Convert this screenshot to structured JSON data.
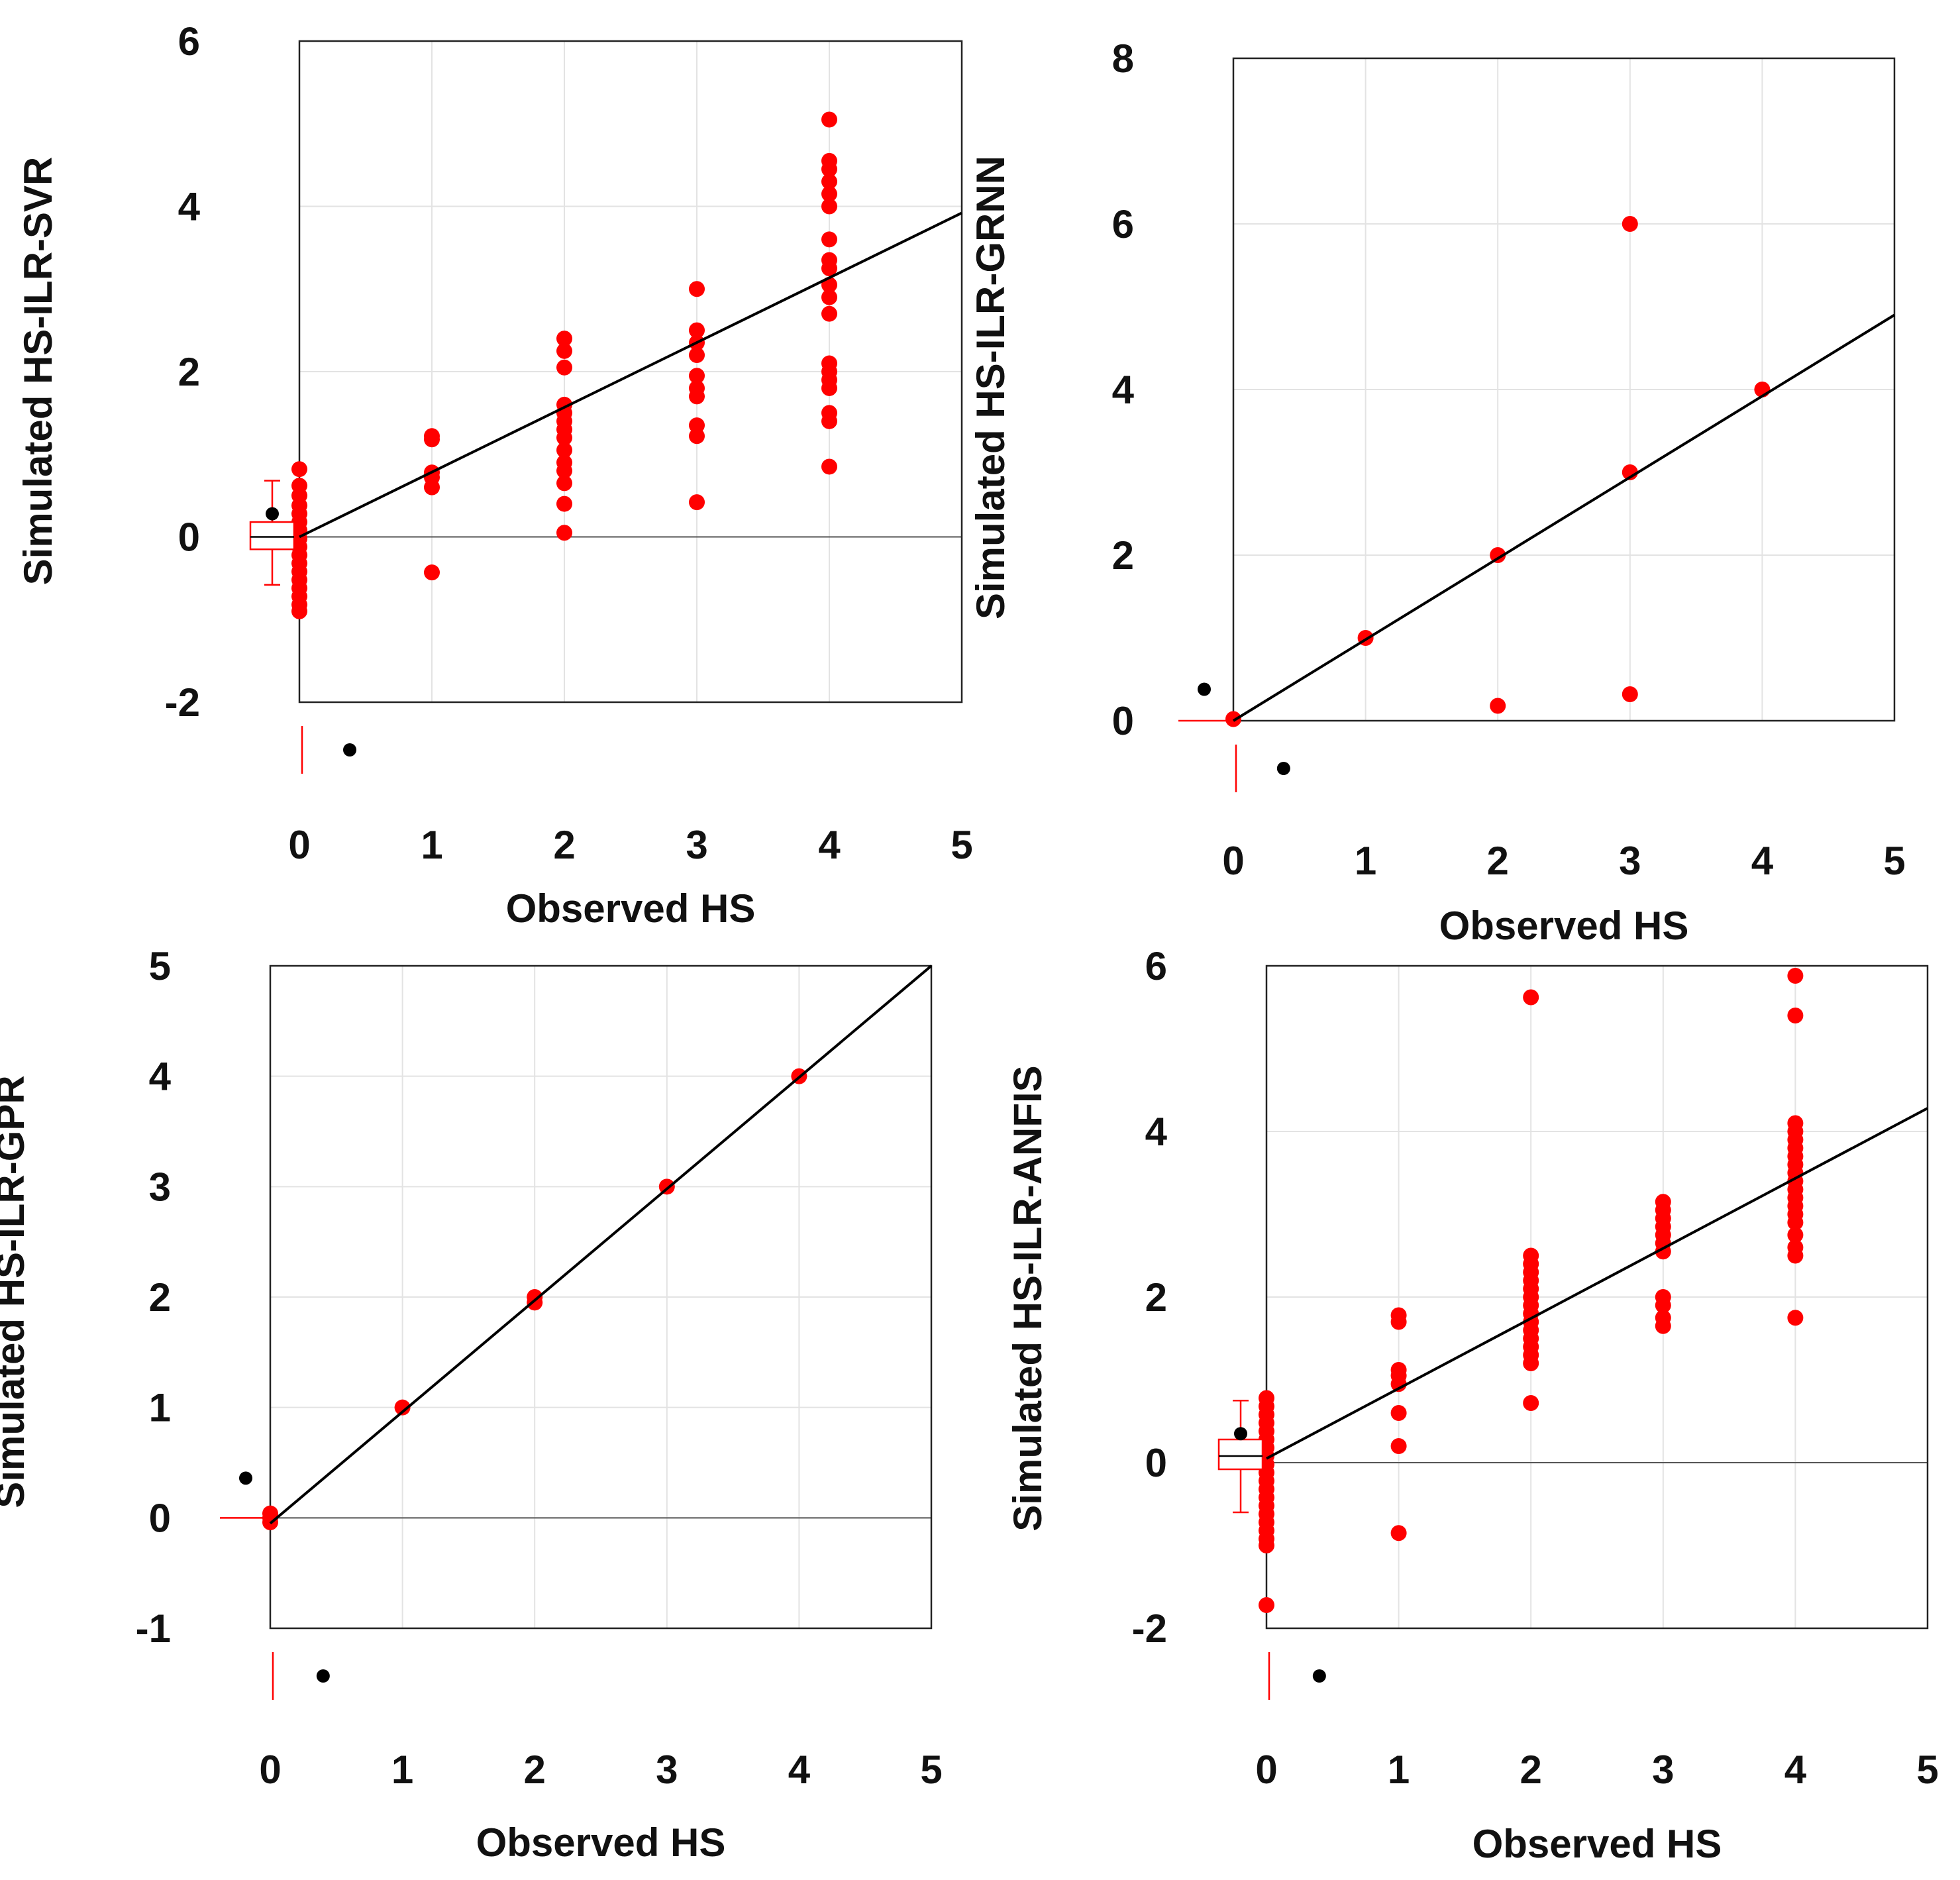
{
  "chart_data": [
    {
      "type": "scatter",
      "xlabel": "Observed HS",
      "ylabel": "Simulated HS-ILR-SVR",
      "xlim": [
        0,
        5
      ],
      "ylim": [
        -2,
        6
      ],
      "xticks": [
        "0",
        "1",
        "2",
        "3",
        "4",
        "5"
      ],
      "yticks": [
        "-2",
        "0",
        "2",
        "4",
        "6"
      ],
      "xtick_values": [
        0,
        1,
        2,
        3,
        4,
        5
      ],
      "ytick_values": [
        -2,
        0,
        2,
        4,
        6
      ],
      "fit_line": [
        [
          0,
          0
        ],
        [
          5,
          3.92
        ]
      ],
      "points": [
        [
          0,
          0.82
        ],
        [
          0,
          0.62
        ],
        [
          0,
          0.5
        ],
        [
          0,
          0.38
        ],
        [
          0,
          0.28
        ],
        [
          0,
          0.18
        ],
        [
          0,
          0.08
        ],
        [
          0,
          -0.02
        ],
        [
          0,
          -0.12
        ],
        [
          0,
          -0.22
        ],
        [
          0,
          -0.32
        ],
        [
          0,
          -0.42
        ],
        [
          0,
          -0.52
        ],
        [
          0,
          -0.62
        ],
        [
          0,
          -0.72
        ],
        [
          0,
          -0.82
        ],
        [
          0,
          -0.9
        ],
        [
          1,
          1.22
        ],
        [
          1,
          1.18
        ],
        [
          1,
          0.78
        ],
        [
          1,
          0.72
        ],
        [
          1,
          0.6
        ],
        [
          1,
          -0.43
        ],
        [
          2,
          2.4
        ],
        [
          2,
          2.25
        ],
        [
          2,
          2.05
        ],
        [
          2,
          1.6
        ],
        [
          2,
          1.5
        ],
        [
          2,
          1.4
        ],
        [
          2,
          1.3
        ],
        [
          2,
          1.2
        ],
        [
          2,
          1.05
        ],
        [
          2,
          0.9
        ],
        [
          2,
          0.8
        ],
        [
          2,
          0.65
        ],
        [
          2,
          0.4
        ],
        [
          2,
          0.05
        ],
        [
          3,
          3.0
        ],
        [
          3,
          2.5
        ],
        [
          3,
          2.35
        ],
        [
          3,
          2.2
        ],
        [
          3,
          1.95
        ],
        [
          3,
          1.8
        ],
        [
          3,
          1.7
        ],
        [
          3,
          1.35
        ],
        [
          3,
          1.22
        ],
        [
          3,
          0.42
        ],
        [
          4,
          5.05
        ],
        [
          4,
          4.55
        ],
        [
          4,
          4.45
        ],
        [
          4,
          4.3
        ],
        [
          4,
          4.15
        ],
        [
          4,
          4.0
        ],
        [
          4,
          3.6
        ],
        [
          4,
          3.35
        ],
        [
          4,
          3.25
        ],
        [
          4,
          3.05
        ],
        [
          4,
          2.9
        ],
        [
          4,
          2.7
        ],
        [
          4,
          2.1
        ],
        [
          4,
          2.0
        ],
        [
          4,
          1.9
        ],
        [
          4,
          1.8
        ],
        [
          4,
          1.5
        ],
        [
          4,
          1.4
        ],
        [
          4,
          0.85
        ]
      ],
      "boxplot_y": {
        "min": -0.58,
        "q1": -0.15,
        "median": 0.0,
        "q3": 0.18,
        "max": 0.68
      },
      "mean_marker_y": 0.28,
      "mean_marker_x": 0.38
    },
    {
      "type": "scatter",
      "xlabel": "Observed HS",
      "ylabel": "Simulated HS-ILR-GRNN",
      "xlim": [
        0,
        5
      ],
      "ylim": [
        0,
        8
      ],
      "xticks": [
        "0",
        "1",
        "2",
        "3",
        "4",
        "5"
      ],
      "yticks": [
        "0",
        "2",
        "4",
        "6",
        "8"
      ],
      "xtick_values": [
        0,
        1,
        2,
        3,
        4,
        5
      ],
      "ytick_values": [
        0,
        2,
        4,
        6,
        8
      ],
      "fit_line": [
        [
          0,
          0
        ],
        [
          5,
          4.9
        ]
      ],
      "points": [
        [
          0,
          0.02
        ],
        [
          1,
          1.0
        ],
        [
          2,
          2.0
        ],
        [
          2,
          0.18
        ],
        [
          3,
          6.0
        ],
        [
          3,
          3.0
        ],
        [
          3,
          0.32
        ],
        [
          4,
          4.0
        ]
      ],
      "boxplot_y": {
        "min": 0.0,
        "q1": 0.0,
        "median": 0.0,
        "q3": 0.0,
        "max": 0.0
      },
      "mean_marker_y": 0.38,
      "mean_marker_x": 0.38
    },
    {
      "type": "scatter",
      "xlabel": "Observed HS",
      "ylabel": "Simulated HS-ILR-GPR",
      "xlim": [
        0,
        5
      ],
      "ylim": [
        -1,
        5
      ],
      "xticks": [
        "0",
        "1",
        "2",
        "3",
        "4",
        "5"
      ],
      "yticks": [
        "-1",
        "0",
        "1",
        "2",
        "3",
        "4",
        "5"
      ],
      "xtick_values": [
        0,
        1,
        2,
        3,
        4,
        5
      ],
      "ytick_values": [
        -1,
        0,
        1,
        2,
        3,
        4,
        5
      ],
      "fit_line": [
        [
          0,
          -0.05
        ],
        [
          5,
          5.0
        ]
      ],
      "points": [
        [
          0,
          0.04
        ],
        [
          0,
          0.0
        ],
        [
          0,
          -0.04
        ],
        [
          1,
          1.0
        ],
        [
          2,
          2.0
        ],
        [
          2,
          1.95
        ],
        [
          3,
          3.0
        ],
        [
          4,
          4.0
        ]
      ],
      "boxplot_y": {
        "min": 0.0,
        "q1": 0.0,
        "median": 0.0,
        "q3": 0.0,
        "max": 0.0
      },
      "mean_marker_y": 0.36,
      "mean_marker_x": 0.4
    },
    {
      "type": "scatter",
      "xlabel": "Observed HS",
      "ylabel": "Simulated HS-ILR-ANFIS",
      "xlim": [
        0,
        5
      ],
      "ylim": [
        -2,
        6
      ],
      "xticks": [
        "0",
        "1",
        "2",
        "3",
        "4",
        "5"
      ],
      "yticks": [
        "-2",
        "0",
        "2",
        "4",
        "6"
      ],
      "xtick_values": [
        0,
        1,
        2,
        3,
        4,
        5
      ],
      "ytick_values": [
        -2,
        0,
        2,
        4,
        6
      ],
      "fit_line": [
        [
          0,
          0.05
        ],
        [
          5,
          4.28
        ]
      ],
      "points": [
        [
          0,
          0.78
        ],
        [
          0,
          0.68
        ],
        [
          0,
          0.58
        ],
        [
          0,
          0.48
        ],
        [
          0,
          0.38
        ],
        [
          0,
          0.28
        ],
        [
          0,
          0.18
        ],
        [
          0,
          0.08
        ],
        [
          0,
          -0.02
        ],
        [
          0,
          -0.12
        ],
        [
          0,
          -0.22
        ],
        [
          0,
          -0.32
        ],
        [
          0,
          -0.42
        ],
        [
          0,
          -0.52
        ],
        [
          0,
          -0.62
        ],
        [
          0,
          -0.72
        ],
        [
          0,
          -0.82
        ],
        [
          0,
          -0.92
        ],
        [
          0,
          -1.0
        ],
        [
          0,
          -1.72
        ],
        [
          1,
          1.78
        ],
        [
          1,
          1.7
        ],
        [
          1,
          1.12
        ],
        [
          1,
          1.05
        ],
        [
          1,
          0.95
        ],
        [
          1,
          0.6
        ],
        [
          1,
          0.2
        ],
        [
          1,
          -0.85
        ],
        [
          2,
          5.62
        ],
        [
          2,
          2.5
        ],
        [
          2,
          2.4
        ],
        [
          2,
          2.3
        ],
        [
          2,
          2.2
        ],
        [
          2,
          2.1
        ],
        [
          2,
          2.0
        ],
        [
          2,
          1.9
        ],
        [
          2,
          1.8
        ],
        [
          2,
          1.7
        ],
        [
          2,
          1.6
        ],
        [
          2,
          1.5
        ],
        [
          2,
          1.4
        ],
        [
          2,
          1.3
        ],
        [
          2,
          1.2
        ],
        [
          2,
          0.72
        ],
        [
          3,
          3.15
        ],
        [
          3,
          3.05
        ],
        [
          3,
          2.95
        ],
        [
          3,
          2.85
        ],
        [
          3,
          2.75
        ],
        [
          3,
          2.65
        ],
        [
          3,
          2.55
        ],
        [
          3,
          2.0
        ],
        [
          3,
          1.9
        ],
        [
          3,
          1.75
        ],
        [
          3,
          1.65
        ],
        [
          4,
          5.88
        ],
        [
          4,
          5.4
        ],
        [
          4,
          4.1
        ],
        [
          4,
          4.0
        ],
        [
          4,
          3.9
        ],
        [
          4,
          3.8
        ],
        [
          4,
          3.7
        ],
        [
          4,
          3.6
        ],
        [
          4,
          3.5
        ],
        [
          4,
          3.4
        ],
        [
          4,
          3.3
        ],
        [
          4,
          3.2
        ],
        [
          4,
          3.1
        ],
        [
          4,
          3.0
        ],
        [
          4,
          2.9
        ],
        [
          4,
          2.75
        ],
        [
          4,
          2.6
        ],
        [
          4,
          2.5
        ],
        [
          4,
          1.75
        ]
      ],
      "boxplot_y": {
        "min": -0.6,
        "q1": -0.08,
        "median": 0.08,
        "q3": 0.28,
        "max": 0.75
      },
      "mean_marker_y": 0.35,
      "mean_marker_x": 0.4
    }
  ]
}
